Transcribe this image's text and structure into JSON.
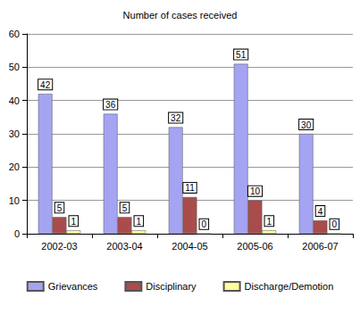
{
  "chart_data": {
    "type": "bar",
    "title": "Number of cases received",
    "categories": [
      "2002-03",
      "2003-04",
      "2004-05",
      "2005-06",
      "2006-07"
    ],
    "series": [
      {
        "name": "Grievances",
        "color": "#a4a4f2",
        "values": [
          42,
          36,
          32,
          51,
          30
        ]
      },
      {
        "name": "Disciplinary",
        "color": "#a84c4c",
        "values": [
          5,
          5,
          11,
          10,
          4
        ]
      },
      {
        "name": "Discharge/Demotion",
        "color": "#ffff99",
        "values": [
          1,
          1,
          0,
          1,
          0
        ]
      }
    ],
    "ylim": [
      0,
      60
    ],
    "yticks": [
      0,
      10,
      20,
      30,
      40,
      50,
      60
    ],
    "grid": true,
    "legend": "bottom",
    "data_labels": true
  }
}
